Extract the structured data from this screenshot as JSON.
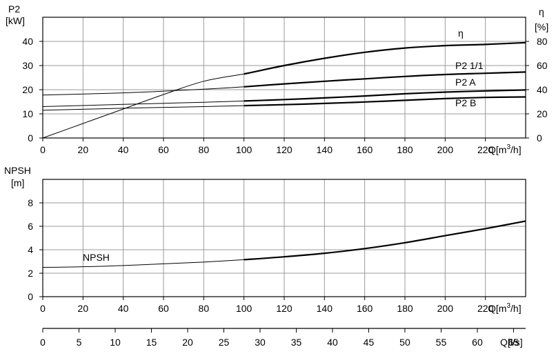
{
  "chart_data": [
    {
      "type": "line",
      "xlabel": "Q[m³/h]",
      "ylabel_left_name": "P2",
      "ylabel_left_unit": "[kW]",
      "ylabel_right_name": "η",
      "ylabel_right_unit": "[%]",
      "xlim": [
        0,
        240
      ],
      "ylim_left": [
        0,
        50
      ],
      "ylim_right": [
        0,
        100
      ],
      "x_ticks": [
        0,
        20,
        40,
        60,
        80,
        100,
        120,
        140,
        160,
        180,
        200,
        220
      ],
      "y_ticks_left": [
        0,
        10,
        20,
        30,
        40
      ],
      "y_ticks_right": [
        0,
        20,
        40,
        60,
        80
      ],
      "grid": true,
      "series": [
        {
          "name": "η",
          "axis": "right",
          "x": [
            0,
            20,
            40,
            60,
            80,
            100,
            120,
            140,
            160,
            180,
            200,
            220,
            240
          ],
          "y": [
            0,
            12,
            24,
            36,
            47,
            53,
            60,
            66,
            71,
            74.5,
            76.5,
            77.5,
            79
          ],
          "thick_from_x": 100
        },
        {
          "name": "P2 1/1",
          "axis": "left",
          "x": [
            0,
            40,
            80,
            100,
            120,
            140,
            160,
            180,
            200,
            220,
            240
          ],
          "y": [
            17.8,
            18.7,
            20.2,
            21.2,
            22.4,
            23.5,
            24.5,
            25.5,
            26.3,
            26.8,
            27.3
          ],
          "thick_from_x": 100
        },
        {
          "name": "P2 A",
          "axis": "left",
          "x": [
            0,
            40,
            80,
            100,
            120,
            140,
            160,
            180,
            200,
            220,
            240
          ],
          "y": [
            13.0,
            13.9,
            14.8,
            15.3,
            15.9,
            16.6,
            17.4,
            18.3,
            19.0,
            19.5,
            19.9
          ],
          "thick_from_x": 100
        },
        {
          "name": "P2 B",
          "axis": "left",
          "x": [
            0,
            40,
            80,
            100,
            120,
            140,
            160,
            180,
            200,
            220,
            240
          ],
          "y": [
            11.5,
            12.3,
            13.0,
            13.4,
            13.8,
            14.3,
            14.9,
            15.6,
            16.3,
            16.8,
            17.0
          ],
          "thick_from_x": 100
        }
      ]
    },
    {
      "type": "line",
      "xlabel": "Q[m³/h]",
      "ylabel_name": "NPSH",
      "ylabel_unit": "[m]",
      "xlim": [
        0,
        240
      ],
      "ylim": [
        0,
        10
      ],
      "x_ticks": [
        0,
        20,
        40,
        60,
        80,
        100,
        120,
        140,
        160,
        180,
        200,
        220
      ],
      "y_ticks": [
        0,
        2,
        4,
        6,
        8
      ],
      "grid": true,
      "series": [
        {
          "name": "NPSH",
          "x": [
            0,
            20,
            40,
            60,
            80,
            100,
            120,
            140,
            160,
            180,
            200,
            220,
            240
          ],
          "y": [
            2.5,
            2.55,
            2.65,
            2.8,
            2.95,
            3.15,
            3.4,
            3.7,
            4.1,
            4.6,
            5.2,
            5.8,
            6.45
          ],
          "thick_from_x": 100
        }
      ]
    },
    {
      "type": "axis",
      "xlabel": "Q[l/s]",
      "xlim": [
        0,
        66.67
      ],
      "x_ticks": [
        0,
        5,
        10,
        15,
        20,
        25,
        30,
        35,
        40,
        45,
        50,
        55,
        60,
        65
      ]
    }
  ]
}
